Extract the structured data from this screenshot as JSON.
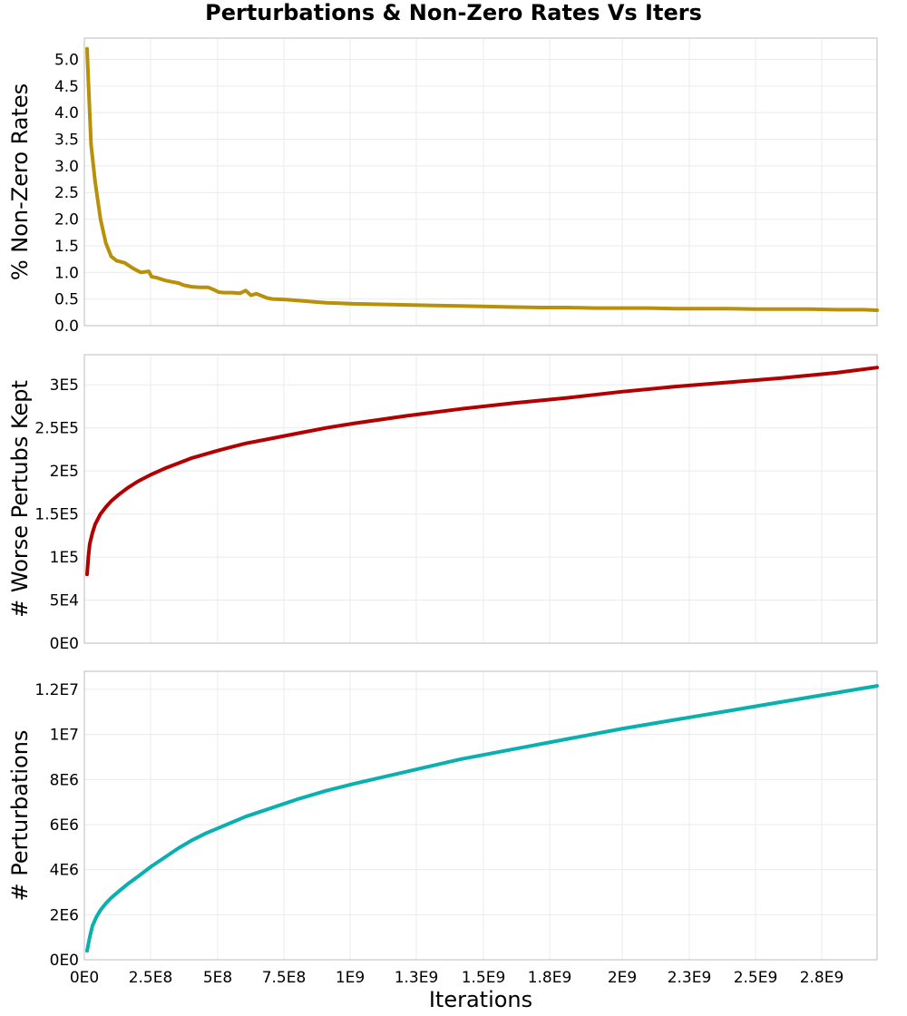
{
  "title": "Perturbations & Non-Zero Rates Vs Iters",
  "xlabel": "Iterations",
  "x_ticks": [
    "0E0",
    "2.5E8",
    "5E8",
    "7.5E8",
    "1E9",
    "1.3E9",
    "1.5E9",
    "1.8E9",
    "2E9",
    "2.3E9",
    "2.5E9",
    "2.8E9"
  ],
  "chart_data": [
    {
      "type": "line",
      "ylabel": "% Non-Zero Rates",
      "xlim": [
        0,
        2950000000
      ],
      "ylim": [
        0,
        5.4
      ],
      "y_tick_values": [
        0.0,
        0.5,
        1.0,
        1.5,
        2.0,
        2.5,
        3.0,
        3.5,
        4.0,
        4.5,
        5.0
      ],
      "y_ticks": [
        "0.0",
        "0.5",
        "1.0",
        "1.5",
        "2.0",
        "2.5",
        "3.0",
        "3.5",
        "4.0",
        "4.5",
        "5.0"
      ],
      "grid": true,
      "series": [
        {
          "color": "#b8900a",
          "x": [
            10000000,
            15000000,
            25000000,
            40000000,
            60000000,
            80000000,
            100000000,
            120000000,
            150000000,
            180000000,
            210000000,
            240000000,
            250000000,
            270000000,
            300000000,
            330000000,
            350000000,
            370000000,
            400000000,
            430000000,
            460000000,
            480000000,
            500000000,
            520000000,
            550000000,
            580000000,
            600000000,
            620000000,
            640000000,
            660000000,
            680000000,
            700000000,
            750000000,
            800000000,
            850000000,
            900000000,
            950000000,
            1000000000,
            1100000000,
            1200000000,
            1300000000,
            1400000000,
            1500000000,
            1600000000,
            1700000000,
            1800000000,
            1900000000,
            2000000000,
            2100000000,
            2200000000,
            2300000000,
            2400000000,
            2500000000,
            2600000000,
            2700000000,
            2800000000,
            2900000000,
            2950000000
          ],
          "y": [
            5.2,
            4.6,
            3.4,
            2.7,
            2.0,
            1.55,
            1.3,
            1.22,
            1.18,
            1.08,
            1.0,
            1.02,
            0.92,
            0.9,
            0.85,
            0.82,
            0.8,
            0.76,
            0.73,
            0.72,
            0.72,
            0.68,
            0.63,
            0.62,
            0.62,
            0.61,
            0.66,
            0.57,
            0.6,
            0.56,
            0.52,
            0.5,
            0.49,
            0.47,
            0.45,
            0.43,
            0.42,
            0.41,
            0.4,
            0.39,
            0.38,
            0.37,
            0.36,
            0.35,
            0.34,
            0.34,
            0.33,
            0.33,
            0.33,
            0.32,
            0.32,
            0.32,
            0.31,
            0.31,
            0.31,
            0.3,
            0.3,
            0.29
          ]
        }
      ]
    },
    {
      "type": "line",
      "ylabel": "# Worse Pertubs Kept",
      "xlim": [
        0,
        2950000000
      ],
      "ylim": [
        0,
        335000
      ],
      "y_tick_values": [
        0,
        50000,
        100000,
        150000,
        200000,
        250000,
        300000
      ],
      "y_ticks": [
        "0E0",
        "5E4",
        "1E5",
        "1.5E5",
        "2E5",
        "2.5E5",
        "3E5"
      ],
      "grid": true,
      "series": [
        {
          "color": "#b00000",
          "x": [
            10000000,
            15000000,
            20000000,
            30000000,
            40000000,
            60000000,
            80000000,
            100000000,
            130000000,
            160000000,
            200000000,
            250000000,
            300000000,
            350000000,
            400000000,
            500000000,
            600000000,
            700000000,
            800000000,
            900000000,
            1000000000,
            1200000000,
            1400000000,
            1600000000,
            1800000000,
            2000000000,
            2200000000,
            2400000000,
            2600000000,
            2800000000,
            2950000000
          ],
          "y": [
            80000,
            100000,
            115000,
            128000,
            138000,
            150000,
            158000,
            165000,
            173000,
            180000,
            188000,
            196000,
            203000,
            209000,
            215000,
            224000,
            232000,
            238000,
            244000,
            250000,
            255000,
            264000,
            272000,
            279000,
            285000,
            292000,
            298000,
            303000,
            308000,
            314000,
            320000
          ]
        }
      ]
    },
    {
      "type": "line",
      "ylabel": "# Perturbations",
      "xlim": [
        0,
        2950000000
      ],
      "ylim": [
        0,
        12800000
      ],
      "y_tick_values": [
        0,
        2000000,
        4000000,
        6000000,
        8000000,
        10000000,
        12000000
      ],
      "y_ticks": [
        "0E0",
        "2E6",
        "4E6",
        "6E6",
        "8E6",
        "1E7",
        "1.2E7"
      ],
      "grid": true,
      "series": [
        {
          "color": "#0aafaf",
          "x": [
            10000000,
            20000000,
            30000000,
            45000000,
            60000000,
            80000000,
            100000000,
            130000000,
            160000000,
            200000000,
            250000000,
            300000000,
            350000000,
            400000000,
            450000000,
            500000000,
            600000000,
            700000000,
            800000000,
            900000000,
            1000000000,
            1200000000,
            1400000000,
            1600000000,
            1800000000,
            2000000000,
            2200000000,
            2400000000,
            2600000000,
            2800000000,
            2950000000
          ],
          "y": [
            400000,
            1000000,
            1500000,
            1900000,
            2200000,
            2500000,
            2750000,
            3050000,
            3350000,
            3700000,
            4150000,
            4550000,
            4950000,
            5300000,
            5600000,
            5850000,
            6350000,
            6750000,
            7150000,
            7500000,
            7800000,
            8350000,
            8900000,
            9350000,
            9800000,
            10250000,
            10650000,
            11050000,
            11450000,
            11850000,
            12150000
          ]
        }
      ]
    }
  ]
}
